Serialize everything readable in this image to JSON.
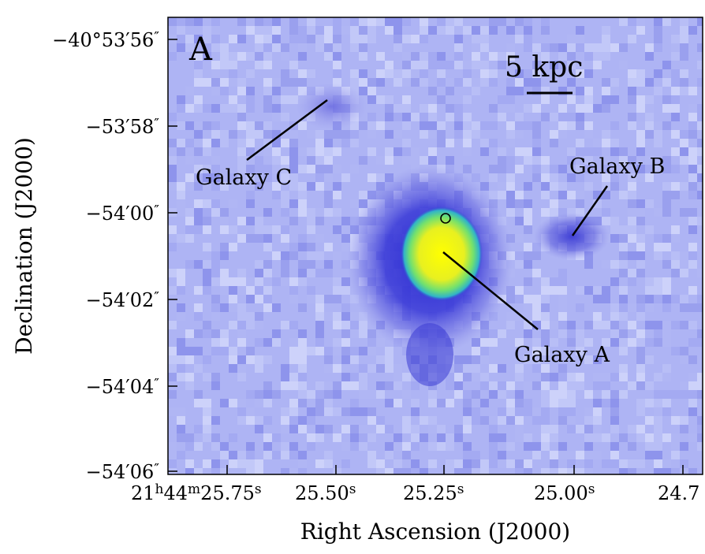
{
  "panel_label": "A",
  "scale_bar": {
    "label": "5 kpc"
  },
  "annotations": [
    {
      "id": "galaxy-a",
      "label": "Galaxy A"
    },
    {
      "id": "galaxy-b",
      "label": "Galaxy B"
    },
    {
      "id": "galaxy-c",
      "label": "Galaxy C"
    }
  ],
  "axes": {
    "x_label": "Right Ascension (J2000)",
    "y_label": "Declination (J2000)",
    "x_ticks": [
      {
        "pre": "21",
        "sup1": "h",
        "mid": "44",
        "sup2": "m",
        "main": "25.75",
        "sup": "s"
      },
      {
        "main": "25.50",
        "sup": "s"
      },
      {
        "main": "25.25",
        "sup": "s"
      },
      {
        "main": "25.00",
        "sup": "s"
      },
      {
        "main": "24.7",
        "sup": ""
      }
    ],
    "y_ticks": [
      {
        "main": "−40°53′56",
        "sup": "″"
      },
      {
        "main": "−53′58",
        "sup": "″"
      },
      {
        "main": "−54′00",
        "sup": "″"
      },
      {
        "main": "−54′02",
        "sup": "″"
      },
      {
        "main": "−54′04",
        "sup": "″"
      },
      {
        "main": "−54′06",
        "sup": "″"
      }
    ]
  },
  "colors": {
    "background_pixel": "#aeb4f4",
    "faint_emission": "#7a7ae6",
    "core_yellow": "#e6f01a",
    "core_green": "#3cc8b4"
  }
}
